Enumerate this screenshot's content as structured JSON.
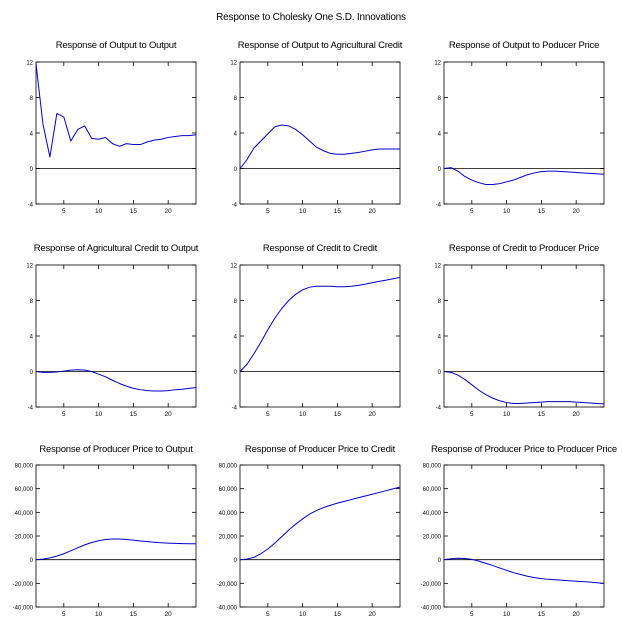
{
  "page_title": "Response to Cholesky One S.D. Innovations",
  "chart_data": [
    {
      "type": "line",
      "title": "Response of Output to Output",
      "x": [
        1,
        2,
        3,
        4,
        5,
        6,
        7,
        8,
        9,
        10,
        11,
        12,
        13,
        14,
        15,
        16,
        17,
        18,
        19,
        20,
        21,
        22,
        23,
        24
      ],
      "series": [
        {
          "values": [
            11.8,
            5.0,
            1.3,
            6.2,
            5.8,
            3.1,
            4.4,
            4.8,
            3.4,
            3.3,
            3.5,
            2.8,
            2.5,
            2.8,
            2.7,
            2.7,
            3.0,
            3.2,
            3.3,
            3.5,
            3.6,
            3.7,
            3.7,
            3.8
          ],
          "color": "#0000cc"
        }
      ],
      "ylim": [
        -4,
        12
      ],
      "yticks": [
        -4,
        0,
        4,
        8,
        12
      ],
      "ytick_labels": [
        "-4",
        "0",
        "4",
        "8",
        "12"
      ],
      "xlim": [
        1,
        24
      ],
      "xticks": [
        5,
        10,
        15,
        20
      ],
      "xtick_labels": [
        "5",
        "10",
        "15",
        "20"
      ]
    },
    {
      "type": "line",
      "title": "Response of Output to Agricultural Credit",
      "x": [
        1,
        2,
        3,
        4,
        5,
        6,
        7,
        8,
        9,
        10,
        11,
        12,
        13,
        14,
        15,
        16,
        17,
        18,
        19,
        20,
        21,
        22,
        23,
        24
      ],
      "series": [
        {
          "values": [
            0.0,
            1.0,
            2.3,
            3.1,
            3.9,
            4.7,
            4.9,
            4.8,
            4.4,
            3.8,
            3.1,
            2.4,
            2.0,
            1.7,
            1.6,
            1.6,
            1.7,
            1.8,
            1.95,
            2.1,
            2.2,
            2.2,
            2.2,
            2.2
          ],
          "color": "#0000cc"
        }
      ],
      "ylim": [
        -4,
        12
      ],
      "yticks": [
        -4,
        0,
        4,
        8,
        12
      ],
      "ytick_labels": [
        "-4",
        "0",
        "4",
        "8",
        "12"
      ],
      "xlim": [
        1,
        24
      ],
      "xticks": [
        5,
        10,
        15,
        20
      ],
      "xtick_labels": [
        "5",
        "10",
        "15",
        "20"
      ]
    },
    {
      "type": "line",
      "title": "Response of Output to Poducer Price",
      "x": [
        1,
        2,
        3,
        4,
        5,
        6,
        7,
        8,
        9,
        10,
        11,
        12,
        13,
        14,
        15,
        16,
        17,
        18,
        19,
        20,
        21,
        22,
        23,
        24
      ],
      "series": [
        {
          "values": [
            0.0,
            0.1,
            -0.3,
            -0.9,
            -1.3,
            -1.6,
            -1.8,
            -1.8,
            -1.7,
            -1.5,
            -1.3,
            -1.0,
            -0.7,
            -0.5,
            -0.35,
            -0.3,
            -0.3,
            -0.35,
            -0.4,
            -0.45,
            -0.5,
            -0.55,
            -0.6,
            -0.65
          ],
          "color": "#0000cc"
        }
      ],
      "ylim": [
        -4,
        12
      ],
      "yticks": [
        -4,
        0,
        4,
        8,
        12
      ],
      "ytick_labels": [
        "-4",
        "0",
        "4",
        "8",
        "12"
      ],
      "xlim": [
        1,
        24
      ],
      "xticks": [
        5,
        10,
        15,
        20
      ],
      "xtick_labels": [
        "5",
        "10",
        "15",
        "20"
      ]
    },
    {
      "type": "line",
      "title": "Response of Agricultural Credit to Output",
      "x": [
        1,
        2,
        3,
        4,
        5,
        6,
        7,
        8,
        9,
        10,
        11,
        12,
        13,
        14,
        15,
        16,
        17,
        18,
        19,
        20,
        21,
        22,
        23,
        24
      ],
      "series": [
        {
          "values": [
            0.0,
            -0.1,
            -0.1,
            -0.05,
            0.05,
            0.15,
            0.2,
            0.15,
            0.0,
            -0.3,
            -0.6,
            -1.0,
            -1.35,
            -1.65,
            -1.9,
            -2.05,
            -2.15,
            -2.2,
            -2.2,
            -2.15,
            -2.05,
            -2.0,
            -1.9,
            -1.8
          ],
          "color": "#0000cc"
        }
      ],
      "ylim": [
        -4,
        12
      ],
      "yticks": [
        -4,
        0,
        4,
        8,
        12
      ],
      "ytick_labels": [
        "-4",
        "0",
        "4",
        "8",
        "12"
      ],
      "xlim": [
        1,
        24
      ],
      "xticks": [
        5,
        10,
        15,
        20
      ],
      "xtick_labels": [
        "5",
        "10",
        "15",
        "20"
      ]
    },
    {
      "type": "line",
      "title": "Response of Credit to Credit",
      "x": [
        1,
        2,
        3,
        4,
        5,
        6,
        7,
        8,
        9,
        10,
        11,
        12,
        13,
        14,
        15,
        16,
        17,
        18,
        19,
        20,
        21,
        22,
        23,
        24
      ],
      "series": [
        {
          "values": [
            0.0,
            0.8,
            2.0,
            3.3,
            4.7,
            6.0,
            7.1,
            8.0,
            8.7,
            9.2,
            9.5,
            9.6,
            9.6,
            9.6,
            9.55,
            9.55,
            9.6,
            9.7,
            9.85,
            10.0,
            10.15,
            10.3,
            10.45,
            10.6
          ],
          "color": "#0000cc"
        }
      ],
      "ylim": [
        -4,
        12
      ],
      "yticks": [
        -4,
        0,
        4,
        8,
        12
      ],
      "ytick_labels": [
        "-4",
        "0",
        "4",
        "8",
        "12"
      ],
      "xlim": [
        1,
        24
      ],
      "xticks": [
        5,
        10,
        15,
        20
      ],
      "xtick_labels": [
        "5",
        "10",
        "15",
        "20"
      ]
    },
    {
      "type": "line",
      "title": "Response of Credit to Producer Price",
      "x": [
        1,
        2,
        3,
        4,
        5,
        6,
        7,
        8,
        9,
        10,
        11,
        12,
        13,
        14,
        15,
        16,
        17,
        18,
        19,
        20,
        21,
        22,
        23,
        24
      ],
      "series": [
        {
          "values": [
            0.0,
            -0.1,
            -0.4,
            -0.9,
            -1.5,
            -2.1,
            -2.6,
            -3.0,
            -3.3,
            -3.5,
            -3.6,
            -3.6,
            -3.55,
            -3.5,
            -3.45,
            -3.4,
            -3.4,
            -3.4,
            -3.4,
            -3.45,
            -3.5,
            -3.55,
            -3.6,
            -3.65
          ],
          "color": "#0000cc"
        }
      ],
      "ylim": [
        -4,
        12
      ],
      "yticks": [
        -4,
        0,
        4,
        8,
        12
      ],
      "ytick_labels": [
        "-4",
        "0",
        "4",
        "8",
        "12"
      ],
      "xlim": [
        1,
        24
      ],
      "xticks": [
        5,
        10,
        15,
        20
      ],
      "xtick_labels": [
        "5",
        "10",
        "15",
        "20"
      ]
    },
    {
      "type": "line",
      "title": "Response of Producer Price to Output",
      "x": [
        1,
        2,
        3,
        4,
        5,
        6,
        7,
        8,
        9,
        10,
        11,
        12,
        13,
        14,
        15,
        16,
        17,
        18,
        19,
        20,
        21,
        22,
        23,
        24
      ],
      "series": [
        {
          "values": [
            0,
            500,
            1500,
            3000,
            5000,
            7500,
            10000,
            12500,
            14500,
            16000,
            17000,
            17500,
            17500,
            17000,
            16500,
            15800,
            15200,
            14700,
            14300,
            14000,
            13800,
            13600,
            13500,
            13400
          ],
          "color": "#0000cc"
        }
      ],
      "ylim": [
        -40000,
        80000
      ],
      "yticks": [
        -40000,
        -20000,
        0,
        20000,
        40000,
        60000,
        80000
      ],
      "ytick_labels": [
        "-40,000",
        "-20,000",
        "0",
        "20,000",
        "40,000",
        "60,000",
        "80,000"
      ],
      "xlim": [
        1,
        24
      ],
      "xticks": [
        5,
        10,
        15,
        20
      ],
      "xtick_labels": [
        "5",
        "10",
        "15",
        "20"
      ]
    },
    {
      "type": "line",
      "title": "Response of Producer Price to Credit",
      "x": [
        1,
        2,
        3,
        4,
        5,
        6,
        7,
        8,
        9,
        10,
        11,
        12,
        13,
        14,
        15,
        16,
        17,
        18,
        19,
        20,
        21,
        22,
        23,
        24
      ],
      "series": [
        {
          "values": [
            0,
            500,
            2000,
            5000,
            9000,
            14000,
            19500,
            25000,
            30000,
            34500,
            38500,
            41500,
            44000,
            46000,
            47800,
            49300,
            50800,
            52300,
            53800,
            55300,
            56800,
            58300,
            59800,
            61300
          ],
          "color": "#0000cc"
        }
      ],
      "ylim": [
        -40000,
        80000
      ],
      "yticks": [
        -40000,
        -20000,
        0,
        20000,
        40000,
        60000,
        80000
      ],
      "ytick_labels": [
        "-40,000",
        "-20,000",
        "0",
        "20,000",
        "40,000",
        "60,000",
        "80,000"
      ],
      "xlim": [
        1,
        24
      ],
      "xticks": [
        5,
        10,
        15,
        20
      ],
      "xtick_labels": [
        "5",
        "10",
        "15",
        "20"
      ]
    },
    {
      "type": "line",
      "title": "Response of Producer Price to Producer Price",
      "x": [
        1,
        2,
        3,
        4,
        5,
        6,
        7,
        8,
        9,
        10,
        11,
        12,
        13,
        14,
        15,
        16,
        17,
        18,
        19,
        20,
        21,
        22,
        23,
        24
      ],
      "series": [
        {
          "values": [
            0,
            800,
            1200,
            1000,
            200,
            -1200,
            -3000,
            -5000,
            -7000,
            -9000,
            -11000,
            -12500,
            -14000,
            -15200,
            -16000,
            -16600,
            -17000,
            -17400,
            -17800,
            -18200,
            -18600,
            -19000,
            -19500,
            -20000
          ],
          "color": "#0000cc"
        }
      ],
      "ylim": [
        -40000,
        80000
      ],
      "yticks": [
        -40000,
        -20000,
        0,
        20000,
        40000,
        60000,
        80000
      ],
      "ytick_labels": [
        "-40,000",
        "-20,000",
        "0",
        "20,000",
        "40,000",
        "60,000",
        "80,000"
      ],
      "xlim": [
        1,
        24
      ],
      "xticks": [
        5,
        10,
        15,
        20
      ],
      "xtick_labels": [
        "5",
        "10",
        "15",
        "20"
      ]
    }
  ]
}
